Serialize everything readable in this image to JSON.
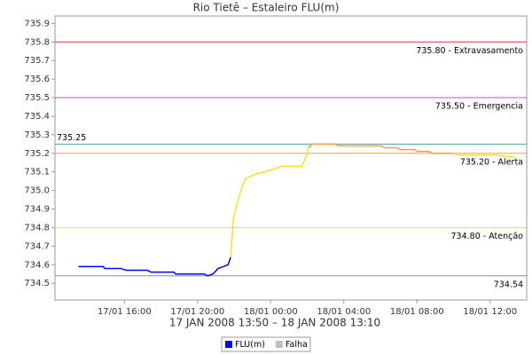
{
  "chart_data": {
    "type": "line",
    "title": "Rio Tietê – Estaleiro FLU(m)",
    "x_label": "17 JAN 2008 13:50 – 18 JAN 2008 13:10",
    "xlim": [
      12.2,
      38
    ],
    "xticks": [
      {
        "value": 16,
        "label": "17/01 16:00"
      },
      {
        "value": 20,
        "label": "17/01 20:00"
      },
      {
        "value": 24,
        "label": "18/01 00:00"
      },
      {
        "value": 28,
        "label": "18/01 04:00"
      },
      {
        "value": 32,
        "label": "18/01 08:00"
      },
      {
        "value": 36,
        "label": "18/01 12:00"
      }
    ],
    "ylim": [
      734.41,
      735.94
    ],
    "yticks": [
      734.5,
      734.6,
      734.7,
      734.8,
      734.9,
      {
        "value": 735,
        "label": "735.0"
      },
      735.1,
      735.2,
      735.3,
      735.4,
      735.5,
      735.6,
      735.7,
      735.8,
      735.9
    ],
    "reference_lines": [
      {
        "value": 735.8,
        "label": "735.80 - Extravasamento",
        "color": "#e03030"
      },
      {
        "value": 735.5,
        "label": "735.50 - Emergencia",
        "color": "#d040d0"
      },
      {
        "value": 735.25,
        "label": "735.25",
        "color": "#5aa0a0"
      },
      {
        "value": 735.2,
        "label": "735.20 - Alerta",
        "color": "#f0a040"
      },
      {
        "value": 734.8,
        "label": "734.80 - Atenção",
        "color": "#f0e020"
      },
      {
        "value": 734.54,
        "label": "734.54",
        "color": "#8090a0"
      }
    ],
    "series": [
      {
        "name": "FLU(m)",
        "color": "#0000ff",
        "x": [
          13.48,
          14.84,
          14.93,
          15.8,
          16.1,
          17.26,
          17.45,
          18.7,
          18.8,
          20.36,
          20.55,
          20.84,
          21.13,
          21.42,
          21.67,
          21.81,
          21.96,
          22.3,
          22.59,
          22.97,
          23.26,
          23.65,
          24,
          24.33,
          24.62,
          25.69,
          25.93,
          26.07,
          26.27,
          27.53,
          27.72,
          30.04,
          30.24,
          30.92,
          31.1,
          31.9,
          32,
          32.66,
          32.85,
          34,
          34.2,
          36.34,
          37.3
        ],
        "values": [
          734.59,
          734.59,
          734.58,
          734.58,
          734.57,
          734.57,
          734.56,
          734.56,
          734.55,
          734.55,
          734.54,
          734.55,
          734.58,
          734.59,
          734.6,
          734.64,
          734.85,
          734.98,
          735.06,
          735.08,
          735.09,
          735.1,
          735.11,
          735.12,
          735.13,
          735.13,
          735.18,
          735.23,
          735.25,
          735.25,
          735.24,
          735.24,
          735.23,
          735.23,
          735.22,
          735.22,
          735.21,
          735.21,
          735.2,
          735.2,
          735.19,
          735.19,
          735.18
        ],
        "colors": [
          "#0000ff",
          "#0000ff",
          "#0000ff",
          "#0000ff",
          "#0000ff",
          "#0000ff",
          "#0000ff",
          "#0000ff",
          "#0000ff",
          "#0000ff",
          "#0000ff",
          "#0000ff",
          "#0000ff",
          "#0000ff",
          "#0000ff",
          "#0000ff",
          "#f8e020",
          "#f8e020",
          "#f8e020",
          "#f8e020",
          "#f8e020",
          "#f8e020",
          "#f8e020",
          "#f8e020",
          "#f8e020",
          "#f8e020",
          "#f8e020",
          "#f8e020",
          "#f0a040",
          "#f0a040",
          "#f0a040",
          "#f0a040",
          "#f0a040",
          "#f0a040",
          "#f0a040",
          "#f0a040",
          "#f0a040",
          "#f0a040",
          "#f0a040",
          "#f0a040",
          "#f8e020",
          "#f8e020",
          "#f8e020"
        ]
      },
      {
        "name": "Falha",
        "color": "#c0c0c0",
        "x": [],
        "values": [],
        "colors": []
      }
    ]
  }
}
